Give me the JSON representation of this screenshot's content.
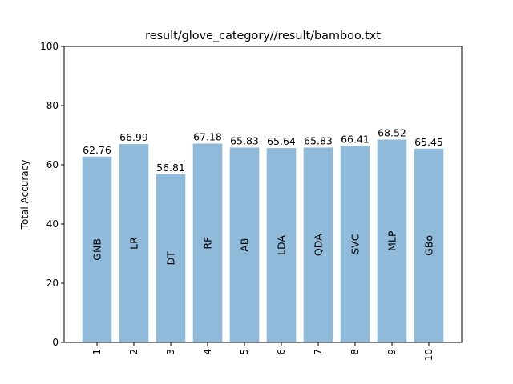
{
  "chart_data": {
    "type": "bar",
    "title": "result/glove_category//result/bamboo.txt",
    "ylabel": "Total Accuracy",
    "xlabel": "",
    "ylim": [
      0,
      100
    ],
    "yticks": [
      "0",
      "20",
      "40",
      "60",
      "80",
      "100"
    ],
    "categories": [
      "1",
      "2",
      "3",
      "4",
      "5",
      "6",
      "7",
      "8",
      "9",
      "10"
    ],
    "bar_names": [
      "GNB",
      "LR",
      "DT",
      "RF",
      "AB",
      "LDA",
      "QDA",
      "SVC",
      "MLP",
      "GBo"
    ],
    "values": [
      62.76,
      66.99,
      56.81,
      67.18,
      65.83,
      65.64,
      65.83,
      66.41,
      68.52,
      65.45
    ],
    "value_labels": [
      "62.76",
      "66.99",
      "56.81",
      "67.18",
      "65.83",
      "65.64",
      "65.83",
      "66.41",
      "68.52",
      "65.45"
    ],
    "bar_color": "#8fbad9",
    "grid": false,
    "legend": "none"
  }
}
